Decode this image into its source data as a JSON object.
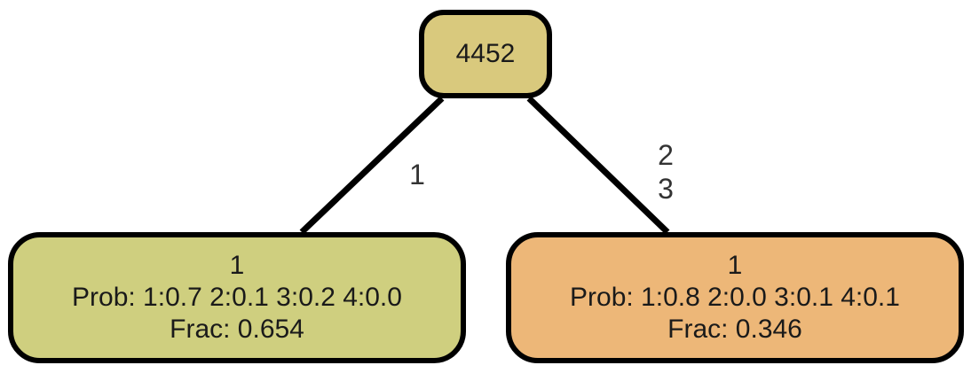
{
  "colors": {
    "root_fill": "#d9c97d",
    "left_leaf_fill": "#cfcf7f",
    "right_leaf_fill": "#edb778",
    "stroke": "#000000",
    "text": "#1a1a1a"
  },
  "root": {
    "label": "4452"
  },
  "edges": {
    "left": {
      "lines": [
        "1"
      ]
    },
    "right": {
      "lines": [
        "2",
        "3"
      ]
    }
  },
  "leaves": [
    {
      "title": "1",
      "prob": "Prob: 1:0.7 2:0.1 3:0.2 4:0.0",
      "frac": "Frac: 0.654"
    },
    {
      "title": "1",
      "prob": "Prob: 1:0.8 2:0.0 3:0.1 4:0.1",
      "frac": "Frac: 0.346"
    }
  ]
}
